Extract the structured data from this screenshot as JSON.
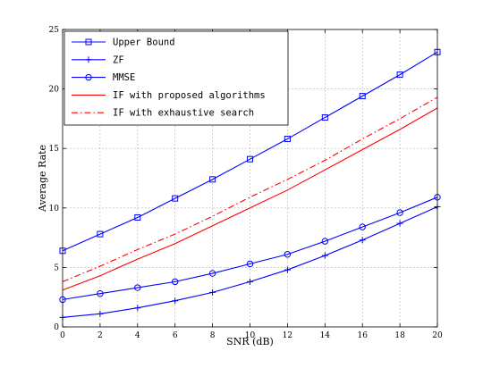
{
  "chart_data": {
    "type": "line",
    "xlabel": "SNR (dB)",
    "ylabel": "Average Rate",
    "xlim": [
      0,
      20
    ],
    "ylim": [
      0,
      25
    ],
    "x_ticks": [
      "0",
      "2",
      "4",
      "6",
      "8",
      "10",
      "12",
      "14",
      "16",
      "18",
      "20"
    ],
    "y_ticks": [
      "0",
      "5",
      "10",
      "15",
      "20",
      "25"
    ],
    "grid": true,
    "legend_position": "top-left",
    "x": [
      0,
      2,
      4,
      6,
      8,
      10,
      12,
      14,
      16,
      18,
      20
    ],
    "series": [
      {
        "name": "Upper Bound",
        "color": "#0000ff",
        "line_style": "solid",
        "marker": "square",
        "values": [
          6.4,
          7.8,
          9.2,
          10.8,
          12.4,
          14.1,
          15.8,
          17.6,
          19.4,
          21.2,
          23.1
        ]
      },
      {
        "name": "ZF",
        "color": "#0000ff",
        "line_style": "solid",
        "marker": "plus",
        "values": [
          0.8,
          1.1,
          1.6,
          2.2,
          2.9,
          3.8,
          4.8,
          6.0,
          7.3,
          8.7,
          10.1
        ]
      },
      {
        "name": "MMSE",
        "color": "#0000ff",
        "line_style": "solid",
        "marker": "circle",
        "values": [
          2.3,
          2.8,
          3.3,
          3.8,
          4.5,
          5.3,
          6.1,
          7.2,
          8.4,
          9.6,
          10.9
        ]
      },
      {
        "name": "IF with proposed algorithms",
        "color": "#ff0000",
        "line_style": "solid",
        "marker": "none",
        "values": [
          3.1,
          4.3,
          5.7,
          7.0,
          8.5,
          10.0,
          11.5,
          13.2,
          14.9,
          16.6,
          18.4
        ]
      },
      {
        "name": "IF with exhaustive search",
        "color": "#ff0000",
        "line_style": "dashdot",
        "marker": "none",
        "values": [
          3.8,
          5.1,
          6.5,
          7.8,
          9.3,
          10.9,
          12.4,
          14.0,
          15.8,
          17.5,
          19.3
        ]
      }
    ]
  }
}
